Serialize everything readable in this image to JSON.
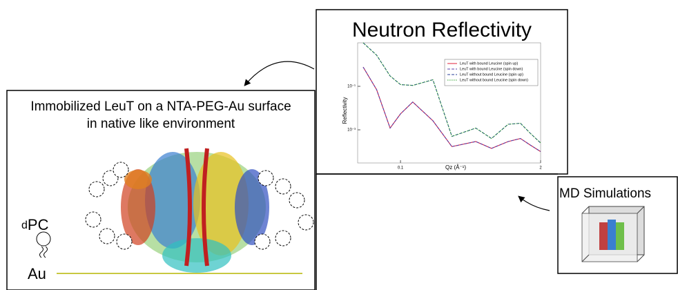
{
  "left_panel": {
    "title_lines": [
      "Immobilized LeuT on a NTA-PEG-Au surface",
      "in native like environment"
    ],
    "dpc_prefix": "d",
    "dpc": "PC",
    "au": "Au"
  },
  "chart_data": {
    "type": "line",
    "title": "Neutron Reflectivity",
    "xlabel": "Qz (Å⁻¹)",
    "ylabel": "Reflectivity",
    "log_x": true,
    "log_y": true,
    "legend": "upper right",
    "x": [
      0.045,
      0.06,
      0.08,
      0.1,
      0.13,
      0.2,
      0.3,
      0.5,
      0.7,
      1.0,
      1.3,
      1.6,
      2.0
    ],
    "xlim": [
      0.04,
      2
    ],
    "xticks": [
      0.1,
      2
    ],
    "ylim": [
      3e-05,
      10
    ],
    "yticks": [
      {
        "value": 0.1,
        "label": "10⁻¹"
      },
      {
        "value": 0.001,
        "label": "10⁻³"
      }
    ],
    "series": [
      {
        "name": "LeuT with bound Leucine (spin up)",
        "color": "#e0203a",
        "dash": "solid",
        "values": [
          0.77,
          0.07,
          0.0012,
          0.0054,
          0.019,
          0.0026,
          0.00017,
          0.00029,
          0.00014,
          0.00029,
          0.0004,
          0.0002,
          0.0001
        ]
      },
      {
        "name": "LeuT with bound Leucine (spin down)",
        "color": "#5a3fa8",
        "dash": "dashed",
        "values": [
          0.77,
          0.07,
          0.0012,
          0.0054,
          0.019,
          0.0026,
          0.00017,
          0.00029,
          0.00014,
          0.00029,
          0.0004,
          0.0002,
          0.0001
        ]
      },
      {
        "name": "LeuT without bound Leucine (spin up)",
        "color": "#2a3f9a",
        "dash": "dashed",
        "values": [
          10,
          2.7,
          0.3,
          0.12,
          0.11,
          0.2,
          0.0005,
          0.0012,
          0.0004,
          0.0018,
          0.002,
          0.0007,
          0.00025
        ]
      },
      {
        "name": "LeuT without bound Leucine (spin down)",
        "color": "#2aa02a",
        "dash": "dotted",
        "values": [
          10,
          2.7,
          0.3,
          0.12,
          0.11,
          0.2,
          0.0005,
          0.0012,
          0.0004,
          0.0018,
          0.002,
          0.0007,
          0.00025
        ]
      }
    ]
  },
  "md_panel": {
    "title": "MD Simulations"
  }
}
